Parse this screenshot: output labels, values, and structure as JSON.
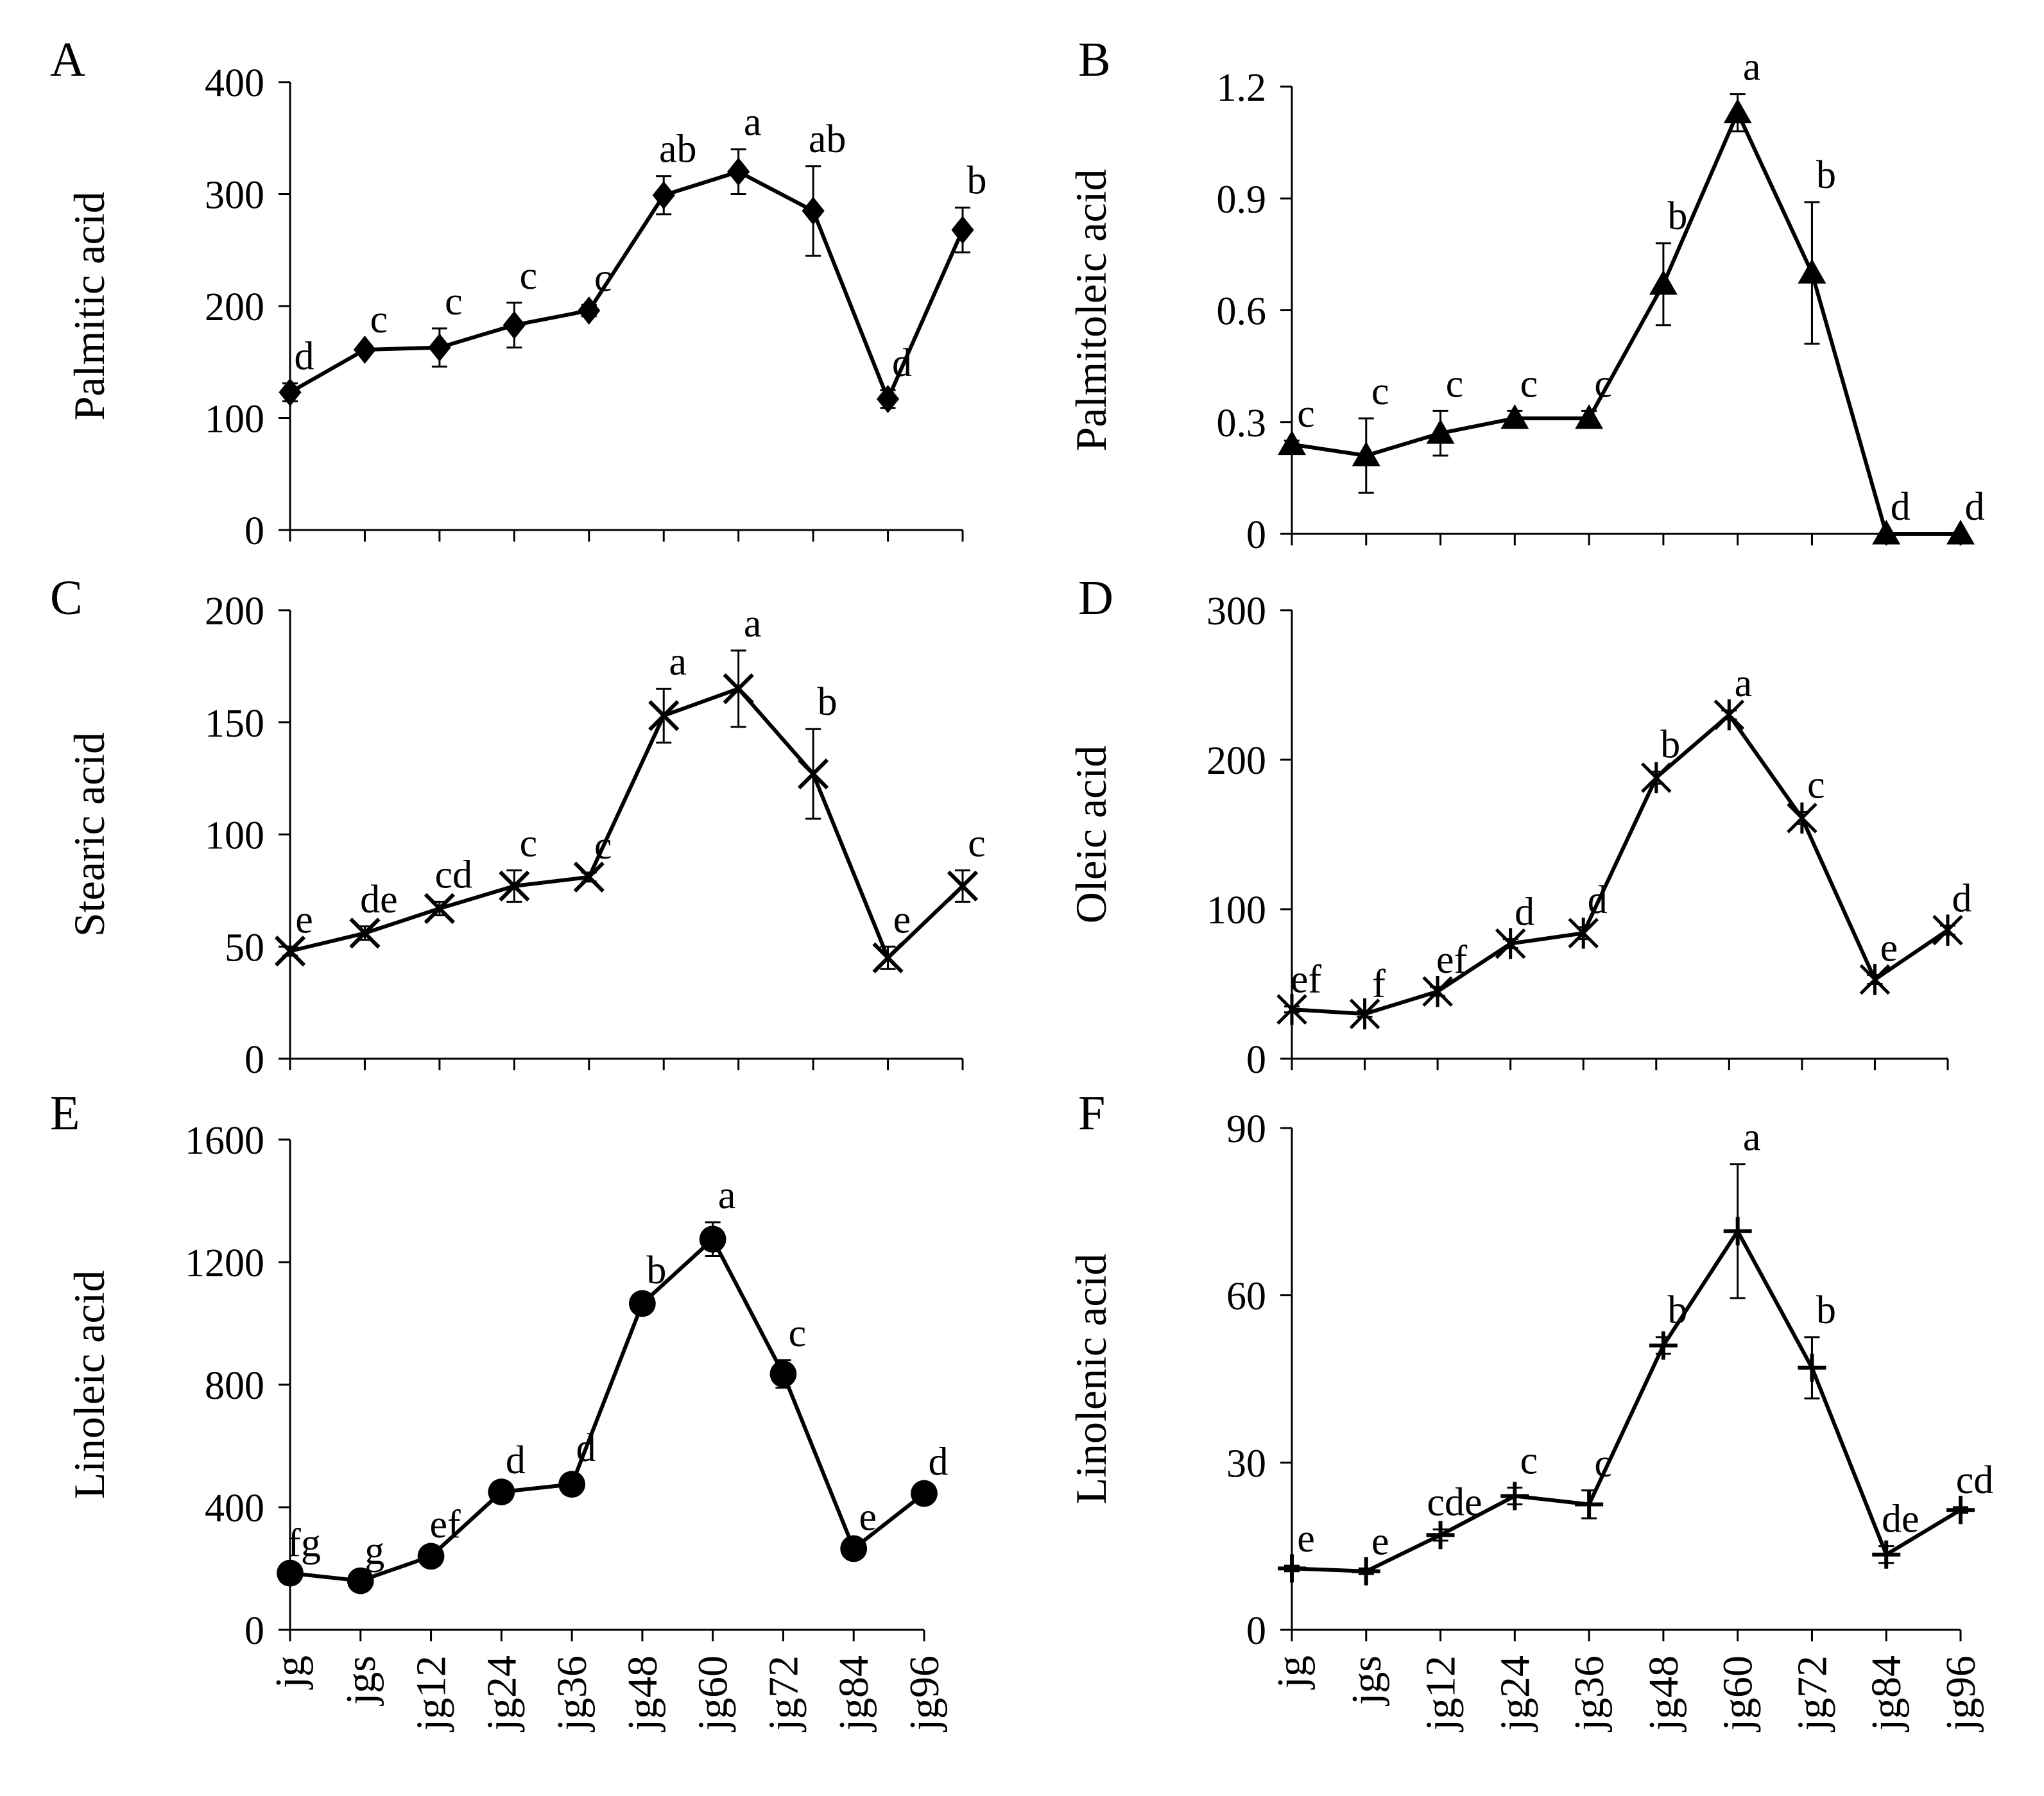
{
  "figure": {
    "categories": [
      "jg",
      "jgs",
      "jg12",
      "jg24",
      "jg36",
      "jg48",
      "jg60",
      "jg72",
      "jg84",
      "jg96"
    ]
  },
  "chart_data": [
    {
      "panel": "A",
      "type": "line",
      "marker": "diamond",
      "ylabel": "Palmitic acid",
      "ylim": [
        0,
        400
      ],
      "yticks": [
        "0",
        "100",
        "200",
        "300",
        "400"
      ],
      "values": [
        123,
        161,
        163,
        183,
        196,
        299,
        320,
        285,
        117,
        268
      ],
      "errors": [
        8,
        3,
        17,
        20,
        5,
        17,
        20,
        40,
        8,
        20
      ],
      "labels": [
        "d",
        "c",
        "c",
        "c",
        "c",
        "ab",
        "a",
        "ab",
        "d",
        "b"
      ]
    },
    {
      "panel": "B",
      "type": "line",
      "marker": "triangle",
      "ylabel": "Palmitoleic acid",
      "ylim": [
        0,
        1.2
      ],
      "yticks": [
        "0",
        "0.3",
        "0.6",
        "0.9",
        "1.2"
      ],
      "values": [
        0.24,
        0.21,
        0.27,
        0.31,
        0.31,
        0.67,
        1.13,
        0.7,
        0.0,
        0.0
      ],
      "errors": [
        0.01,
        0.1,
        0.06,
        0.02,
        0.02,
        0.11,
        0.05,
        0.19,
        0.0,
        0.0
      ],
      "labels": [
        "c",
        "c",
        "c",
        "c",
        "c",
        "b",
        "a",
        "b",
        "d",
        "d"
      ]
    },
    {
      "panel": "C",
      "type": "line",
      "marker": "x",
      "ylabel": "Stearic acid",
      "ylim": [
        0,
        200
      ],
      "yticks": [
        "0",
        "50",
        "100",
        "150",
        "200"
      ],
      "values": [
        48,
        56,
        67,
        77,
        81,
        153,
        165,
        127,
        45,
        77
      ],
      "errors": [
        2,
        3,
        3,
        7,
        2,
        12,
        17,
        20,
        5,
        7
      ],
      "labels": [
        "e",
        "de",
        "cd",
        "c",
        "c",
        "a",
        "a",
        "b",
        "e",
        "c"
      ]
    },
    {
      "panel": "D",
      "type": "line",
      "marker": "asterisk",
      "ylabel": "Oleic acid",
      "ylim": [
        0,
        300
      ],
      "yticks": [
        "0",
        "100",
        "200",
        "300"
      ],
      "values": [
        33,
        30,
        45,
        77,
        84,
        188,
        230,
        161,
        53,
        86
      ],
      "errors": [
        2,
        2,
        3,
        3,
        4,
        4,
        3,
        4,
        3,
        3
      ],
      "labels": [
        "ef",
        "f",
        "ef",
        "d",
        "d",
        "b",
        "a",
        "c",
        "e",
        "d"
      ]
    },
    {
      "panel": "E",
      "type": "line",
      "marker": "circle",
      "ylabel": "Linoleic acid",
      "ylim": [
        0,
        1600
      ],
      "yticks": [
        "0",
        "400",
        "800",
        "1200",
        "1600"
      ],
      "values": [
        185,
        160,
        240,
        450,
        475,
        1065,
        1275,
        835,
        265,
        445
      ],
      "errors": [
        10,
        10,
        15,
        15,
        30,
        20,
        55,
        45,
        15,
        15
      ],
      "labels": [
        "fg",
        "g",
        "ef",
        "d",
        "d",
        "b",
        "a",
        "c",
        "e",
        "d"
      ]
    },
    {
      "panel": "F",
      "type": "line",
      "marker": "plus",
      "ylabel": "Linolenic acid",
      "ylim": [
        0,
        90
      ],
      "yticks": [
        "0",
        "30",
        "60",
        "90"
      ],
      "values": [
        11,
        10.5,
        17,
        24,
        22.5,
        51,
        71.5,
        47,
        13.5,
        21.5
      ],
      "errors": [
        0.5,
        0.5,
        1.0,
        1.5,
        2.5,
        1.5,
        12,
        5.5,
        1.5,
        0.5
      ],
      "labels": [
        "e",
        "e",
        "cde",
        "c",
        "c",
        "b",
        "a",
        "b",
        "de",
        "cd"
      ]
    }
  ]
}
